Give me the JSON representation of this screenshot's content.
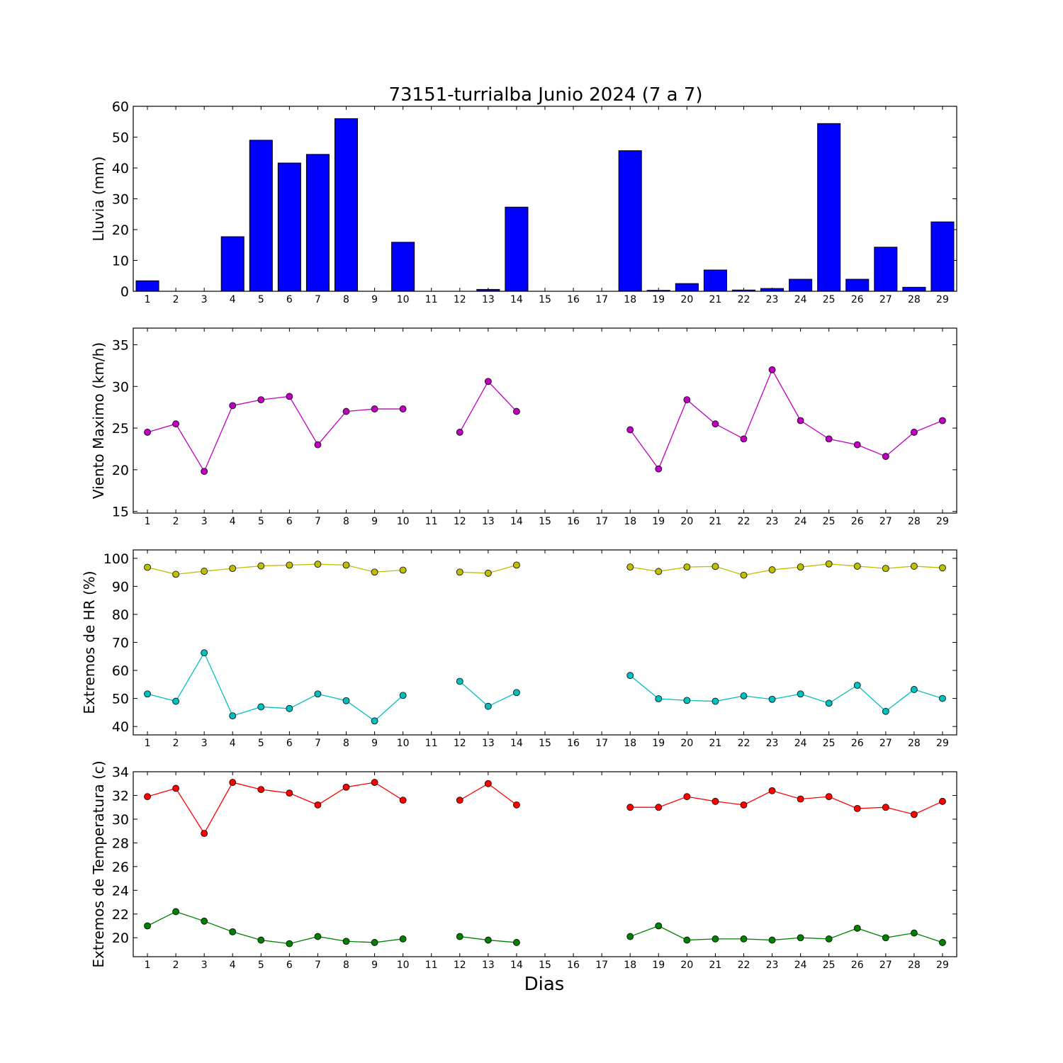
{
  "title": "73151-turrialba Junio 2024  (7 a 7)",
  "xlabel": "Dias",
  "chart_data": [
    {
      "type": "bar",
      "ylabel": "Lluvia (mm)",
      "ylim": [
        0,
        60
      ],
      "yticks": [
        0,
        10,
        20,
        30,
        40,
        50,
        60
      ],
      "categories": [
        "1",
        "2",
        "3",
        "4",
        "5",
        "6",
        "7",
        "8",
        "9",
        "10",
        "11",
        "12",
        "13",
        "14",
        "15",
        "16",
        "17",
        "18",
        "19",
        "20",
        "21",
        "22",
        "23",
        "24",
        "25",
        "26",
        "27",
        "28",
        "29"
      ],
      "series": [
        {
          "color": "#0000ff",
          "values": [
            3.4,
            0,
            0,
            17.7,
            49,
            41.6,
            44.4,
            56,
            0,
            15.9,
            null,
            0,
            0.6,
            27.3,
            null,
            null,
            null,
            45.6,
            0.3,
            2.5,
            6.9,
            0.4,
            0.9,
            3.9,
            54.4,
            3.9,
            14.3,
            1.3,
            22.5
          ]
        }
      ]
    },
    {
      "type": "line",
      "ylabel": "Viento Maximo (km/h)",
      "ylim": [
        14.8,
        37
      ],
      "yticks": [
        15,
        20,
        25,
        30,
        35
      ],
      "categories": [
        "1",
        "2",
        "3",
        "4",
        "5",
        "6",
        "7",
        "8",
        "9",
        "10",
        "11",
        "12",
        "13",
        "14",
        "15",
        "16",
        "17",
        "18",
        "19",
        "20",
        "21",
        "22",
        "23",
        "24",
        "25",
        "26",
        "27",
        "28",
        "29"
      ],
      "series": [
        {
          "color": "#bf00bf",
          "values": [
            24.5,
            25.5,
            19.8,
            27.7,
            28.4,
            28.8,
            23.0,
            27.0,
            27.3,
            27.3,
            null,
            24.5,
            30.6,
            27.0,
            null,
            null,
            null,
            24.8,
            20.1,
            28.4,
            25.5,
            23.7,
            32.0,
            25.9,
            23.7,
            23.0,
            21.6,
            24.5,
            25.9
          ]
        }
      ]
    },
    {
      "type": "line",
      "ylabel": "Extremos de HR (%)",
      "ylim": [
        37,
        103
      ],
      "yticks": [
        40,
        50,
        60,
        70,
        80,
        90,
        100
      ],
      "categories": [
        "1",
        "2",
        "3",
        "4",
        "5",
        "6",
        "7",
        "8",
        "9",
        "10",
        "11",
        "12",
        "13",
        "14",
        "15",
        "16",
        "17",
        "18",
        "19",
        "20",
        "21",
        "22",
        "23",
        "24",
        "25",
        "26",
        "27",
        "28",
        "29"
      ],
      "series": [
        {
          "color": "#bfbf00",
          "values": [
            96.8,
            94.3,
            95.4,
            96.4,
            97.3,
            97.6,
            97.9,
            97.6,
            95.1,
            95.8,
            null,
            95.1,
            94.7,
            97.6,
            null,
            null,
            null,
            96.9,
            95.3,
            96.9,
            97.1,
            94.0,
            95.9,
            96.9,
            98.0,
            97.2,
            96.4,
            97.2,
            96.6
          ]
        },
        {
          "color": "#00bfbf",
          "values": [
            51.6,
            49.0,
            66.3,
            43.8,
            47.0,
            46.4,
            51.6,
            49.2,
            42.0,
            51.1,
            null,
            56.1,
            47.2,
            52.1,
            null,
            null,
            null,
            58.2,
            49.9,
            49.3,
            49.0,
            50.9,
            49.7,
            51.6,
            48.3,
            54.7,
            45.4,
            53.2,
            50.0
          ]
        }
      ]
    },
    {
      "type": "line",
      "ylabel": "Extremos de Temperatura (c)",
      "ylim": [
        18.4,
        34
      ],
      "yticks": [
        20,
        22,
        24,
        26,
        28,
        30,
        32,
        34
      ],
      "categories": [
        "1",
        "2",
        "3",
        "4",
        "5",
        "6",
        "7",
        "8",
        "9",
        "10",
        "11",
        "12",
        "13",
        "14",
        "15",
        "16",
        "17",
        "18",
        "19",
        "20",
        "21",
        "22",
        "23",
        "24",
        "25",
        "26",
        "27",
        "28",
        "29"
      ],
      "series": [
        {
          "color": "#ff0000",
          "values": [
            31.9,
            32.6,
            28.8,
            33.1,
            32.5,
            32.2,
            31.2,
            32.7,
            33.1,
            31.6,
            null,
            31.6,
            33.0,
            31.2,
            null,
            null,
            null,
            31.0,
            31.0,
            31.9,
            31.5,
            31.2,
            32.4,
            31.7,
            31.9,
            30.9,
            31.0,
            30.4,
            31.5
          ]
        },
        {
          "color": "#008000",
          "values": [
            21.0,
            22.2,
            21.4,
            20.5,
            19.8,
            19.5,
            20.1,
            19.7,
            19.6,
            19.9,
            null,
            20.1,
            19.8,
            19.6,
            null,
            null,
            null,
            20.1,
            21.0,
            19.8,
            19.9,
            19.9,
            19.8,
            20.0,
            19.9,
            20.8,
            20.0,
            20.4,
            19.6
          ]
        }
      ]
    }
  ]
}
